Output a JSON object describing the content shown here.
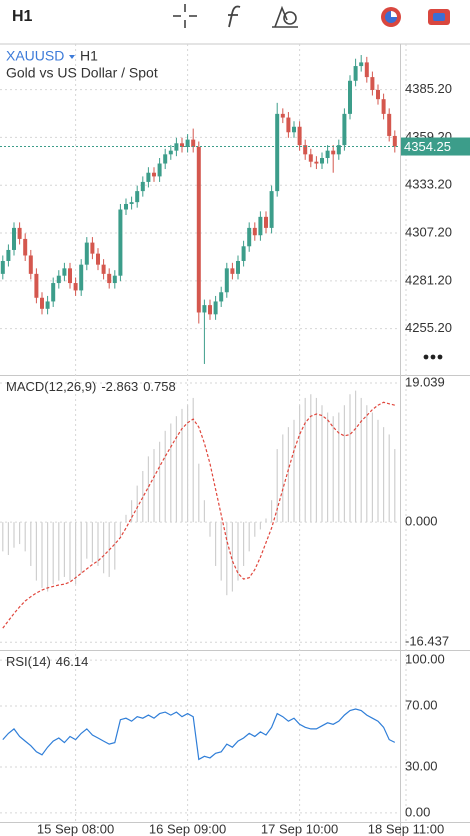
{
  "toolbar": {
    "interval": "H1"
  },
  "chart_data": [
    {
      "type": "candlestick",
      "title": "XAUUSD",
      "interval": "H1",
      "subtitle": "Gold vs US Dollar / Spot",
      "categories": [
        null,
        null,
        null,
        null,
        null,
        null,
        null,
        null,
        null,
        null,
        null,
        null,
        null,
        "15 Sep 08:00",
        null,
        null,
        null,
        null,
        null,
        null,
        null,
        null,
        null,
        null,
        null,
        null,
        null,
        null,
        null,
        null,
        null,
        null,
        null,
        "16 Sep 09:00",
        null,
        null,
        null,
        null,
        null,
        null,
        null,
        null,
        null,
        null,
        null,
        null,
        null,
        null,
        null,
        null,
        null,
        null,
        null,
        "17 Sep 10:00",
        null,
        null,
        null,
        null,
        null,
        null,
        null,
        null,
        null,
        null,
        null,
        null,
        null,
        null,
        null,
        null,
        null,
        null,
        "18 Sep 11:00"
      ],
      "open": [
        4285,
        4292,
        4298,
        4310,
        4304,
        4295,
        4285,
        4272,
        4266,
        4270,
        4280,
        4284,
        4288,
        4280,
        4276,
        4290,
        4302,
        4296,
        4290,
        4285,
        4280,
        4284,
        4320,
        4323,
        4324,
        4330,
        4335,
        4340,
        4338,
        4345,
        4350,
        4352,
        4356,
        4354,
        4358,
        4354,
        4264,
        4268,
        4263,
        4270,
        4275,
        4288,
        4285,
        4292,
        4300,
        4310,
        4306,
        4316,
        4310,
        4330,
        4372,
        4370,
        4362,
        4365,
        4355,
        4350,
        4346,
        4345,
        4348,
        4352,
        4350,
        4355,
        4372,
        4390,
        4398,
        4400,
        4392,
        4385,
        4380,
        4372,
        4360,
        null,
        null
      ],
      "high": [
        4295,
        4301,
        4313,
        4313,
        4307,
        4298,
        4288,
        4275,
        4273,
        4283,
        4287,
        4291,
        4291,
        4283,
        4293,
        4305,
        4305,
        4299,
        4293,
        4288,
        4287,
        4323,
        4326,
        4327,
        4333,
        4338,
        4343,
        4343,
        4348,
        4353,
        4355,
        4359,
        4359,
        4361,
        4364,
        4357,
        4271,
        4271,
        4273,
        4278,
        4291,
        4291,
        4295,
        4303,
        4313,
        4313,
        4319,
        4319,
        4333,
        4378,
        4375,
        4373,
        4368,
        4368,
        4358,
        4353,
        4349,
        4351,
        4355,
        4355,
        4358,
        4375,
        4393,
        4402,
        4404,
        4403,
        4395,
        4388,
        4383,
        4375,
        4363,
        null,
        null
      ],
      "low": [
        4282,
        4289,
        4295,
        4301,
        4292,
        4282,
        4269,
        4263,
        4263,
        4267,
        4277,
        4281,
        4277,
        4273,
        4273,
        4287,
        4293,
        4287,
        4282,
        4277,
        4277,
        4281,
        4317,
        4320,
        4321,
        4327,
        4332,
        4335,
        4335,
        4342,
        4347,
        4349,
        4351,
        4351,
        4351,
        4258,
        4236,
        4260,
        4260,
        4267,
        4272,
        4282,
        4282,
        4289,
        4297,
        4303,
        4303,
        4307,
        4307,
        4327,
        4367,
        4359,
        4359,
        4352,
        4347,
        4343,
        4342,
        4342,
        4345,
        4340,
        4347,
        4352,
        4369,
        4387,
        4395,
        4389,
        4382,
        4377,
        4369,
        4357,
        4351,
        null,
        null
      ],
      "close": [
        4292,
        4298,
        4310,
        4304,
        4295,
        4285,
        4272,
        4266,
        4270,
        4280,
        4284,
        4288,
        4280,
        4276,
        4290,
        4302,
        4296,
        4290,
        4285,
        4280,
        4284,
        4320,
        4323,
        4324,
        4330,
        4335,
        4340,
        4338,
        4345,
        4350,
        4352,
        4356,
        4354,
        4358,
        4354,
        4264,
        4268,
        4263,
        4270,
        4275,
        4288,
        4285,
        4292,
        4300,
        4310,
        4306,
        4316,
        4310,
        4330,
        4372,
        4370,
        4362,
        4365,
        4355,
        4350,
        4346,
        4345,
        4348,
        4352,
        4350,
        4355,
        4372,
        4390,
        4398,
        4400,
        4392,
        4385,
        4380,
        4372,
        4360,
        4354.25,
        null,
        null
      ],
      "up_color": "#3c9d8a",
      "down_color": "#d4574e",
      "ylim": [
        4230,
        4410
      ],
      "yticks": [
        {
          "value": 4255.2,
          "label": "4255.20"
        },
        {
          "value": 4281.2,
          "label": "4281.20"
        },
        {
          "value": 4307.2,
          "label": "4307.20"
        },
        {
          "value": 4333.2,
          "label": "4333.20"
        },
        {
          "value": 4359.2,
          "label": "4359.20"
        },
        {
          "value": 4385.2,
          "label": "4385.20"
        }
      ],
      "grid": true
    },
    {
      "type": "bar",
      "title": "MACD(12,26,9)",
      "current": [
        -2.863,
        0.758
      ],
      "values": [
        -4,
        -4.5,
        -3.5,
        -3,
        -4,
        -6,
        -8,
        -9,
        -9.5,
        -8.5,
        -8,
        -7.5,
        -8,
        -8.5,
        -7,
        -5,
        -5.5,
        -6,
        -7,
        -7.5,
        -6.5,
        -2,
        1,
        3,
        5,
        7,
        9,
        10,
        11,
        12.5,
        13.5,
        14.5,
        15.5,
        16,
        17,
        8,
        3,
        -2,
        -6,
        -8,
        -10,
        -9.5,
        -8,
        -6,
        -4,
        -2,
        -1,
        0.5,
        3,
        10,
        12,
        13,
        14,
        16,
        17,
        17.5,
        17,
        16,
        15,
        14.5,
        15,
        16,
        17.5,
        18,
        17,
        16,
        15,
        14,
        13,
        12,
        10,
        null,
        null
      ],
      "color": "#cfcfcf",
      "signal": {
        "color": "#e0463c",
        "dashed": true,
        "values": [
          -14.5,
          -13.5,
          -12.5,
          -11.6,
          -10.8,
          -10.2,
          -9.7,
          -9.3,
          -9,
          -8.8,
          -8.6,
          -8.5,
          -8.2,
          -7.6,
          -7,
          -6.4,
          -5.8,
          -5.3,
          -4.6,
          -3.8,
          -3,
          -2.1,
          -0.8,
          0.6,
          2,
          3.4,
          4.8,
          6.2,
          7.6,
          9,
          10.3,
          11.6,
          12.8,
          13.6,
          14.1,
          13,
          10.8,
          8,
          4.5,
          1,
          -2.5,
          -5.3,
          -7,
          -7.8,
          -7.6,
          -6.5,
          -4.8,
          -2.8,
          -0.8,
          1.8,
          4.5,
          7.2,
          9.8,
          12,
          13.6,
          14.5,
          14.8,
          14.6,
          14,
          13,
          12.2,
          11.8,
          12,
          12.8,
          13.8,
          14.6,
          15.4,
          16,
          16.4,
          16.2,
          16,
          null,
          null
        ]
      },
      "ylim": [
        -17.5,
        20
      ],
      "yticks": [
        -16.437,
        {
          "value": 0,
          "label": "0.000"
        },
        19.039
      ],
      "grid": true
    },
    {
      "type": "line",
      "title": "RSI(14)",
      "values": [
        48,
        52,
        55,
        50,
        47,
        44,
        40,
        38,
        43,
        47,
        49,
        46,
        50,
        48,
        52,
        55,
        51,
        49,
        47,
        45,
        46,
        61,
        62,
        60,
        63,
        62,
        64,
        62,
        65,
        66,
        64,
        66,
        63,
        65,
        63,
        35,
        37,
        36,
        39,
        40,
        45,
        43,
        47,
        49,
        52,
        50,
        53,
        51,
        56,
        65,
        63,
        60,
        62,
        58,
        56,
        55,
        55,
        57,
        59,
        58,
        60,
        64,
        67,
        68,
        67,
        64,
        62,
        60,
        56,
        48,
        46.14,
        null,
        null
      ],
      "color": "#2f7ed8",
      "ylim": [
        -6,
        106
      ],
      "yticks": [
        {
          "value": 0,
          "label": "0.00"
        },
        {
          "value": 30,
          "label": "30.00"
        },
        {
          "value": 70,
          "label": "70.00"
        },
        {
          "value": 100,
          "label": "100.00"
        }
      ],
      "grid": true
    }
  ]
}
